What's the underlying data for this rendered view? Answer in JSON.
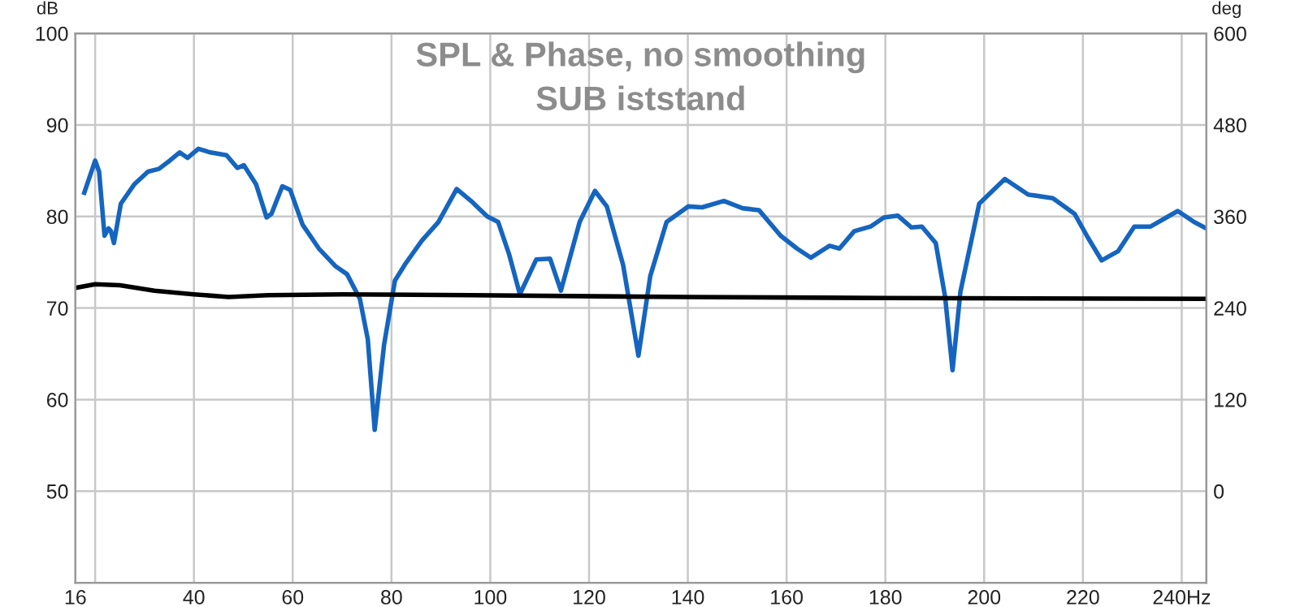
{
  "chart_data": {
    "type": "line",
    "title": "SPL & Phase, no smoothing",
    "subtitle": "SUB iststand",
    "ylabel": "dB",
    "y2label": "deg",
    "xlim": [
      16,
      245
    ],
    "xticks": [
      16,
      {
        "value": 20,
        "label": null
      },
      40,
      60,
      80,
      100,
      120,
      140,
      160,
      180,
      200,
      220,
      {
        "value": 240,
        "label": "240Hz"
      }
    ],
    "ylim": [
      40,
      100
    ],
    "yticks": [
      50,
      60,
      70,
      80,
      90,
      100
    ],
    "y2lim": [
      -120,
      600
    ],
    "y2ticks": [
      0,
      120,
      240,
      360,
      480,
      600
    ],
    "grid": true,
    "marker": "none",
    "line_style": "solid",
    "series": [
      {
        "color": "#1565c0",
        "x": [
          17.8,
          20.0,
          20.8,
          21.9,
          22.7,
          23.2,
          23.8,
          25.2,
          27.9,
          30.7,
          32.9,
          35.1,
          37.1,
          38.7,
          40.9,
          43.3,
          46.6,
          48.8,
          50.1,
          52.6,
          54.7,
          55.7,
          57.9,
          59.5,
          62.0,
          65.3,
          68.6,
          71.0,
          73.6,
          75.2,
          76.6,
          78.5,
          80.7,
          82.9,
          86.2,
          89.5,
          93.2,
          96.1,
          99.4,
          101.6,
          103.8,
          106.0,
          109.3,
          112.1,
          114.3,
          118.1,
          121.2,
          123.6,
          126.9,
          130.0,
          132.4,
          135.7,
          140.1,
          142.9,
          147.3,
          151.1,
          154.4,
          158.8,
          162.1,
          164.9,
          168.7,
          170.7,
          173.7,
          177.0,
          179.7,
          182.5,
          185.3,
          187.4,
          190.2,
          192.1,
          193.6,
          195.2,
          199.0,
          204.2,
          208.9,
          213.9,
          218.3,
          221.0,
          223.8,
          227.1,
          230.4,
          233.7,
          239.2,
          242.5,
          245.0
        ],
        "values": [
          82.6,
          86.1,
          84.9,
          77.9,
          78.7,
          78.4,
          77.1,
          81.4,
          83.5,
          84.9,
          85.2,
          86.1,
          87.0,
          86.4,
          87.4,
          87.0,
          86.7,
          85.3,
          85.6,
          83.5,
          79.9,
          80.3,
          83.3,
          82.9,
          79.1,
          76.5,
          74.6,
          73.7,
          71.0,
          66.6,
          56.7,
          66.0,
          73.0,
          74.9,
          77.4,
          79.4,
          83.0,
          81.7,
          80.0,
          79.4,
          75.9,
          71.5,
          75.3,
          75.4,
          71.9,
          79.4,
          82.8,
          81.1,
          74.7,
          64.8,
          73.5,
          79.4,
          81.1,
          81.0,
          81.7,
          80.9,
          80.7,
          77.9,
          76.5,
          75.5,
          76.8,
          76.5,
          78.4,
          78.9,
          79.9,
          80.1,
          78.8,
          78.9,
          77.1,
          71.2,
          63.2,
          71.8,
          81.4,
          84.1,
          82.4,
          82.0,
          80.3,
          77.7,
          75.2,
          76.2,
          78.9,
          78.9,
          80.6,
          79.4,
          78.7
        ]
      },
      {
        "color": "#000000",
        "x": [
          16,
          20,
          25,
          32,
          40,
          47,
          55,
          70,
          96,
          140,
          180,
          245
        ],
        "values": [
          72.2,
          72.6,
          72.5,
          71.9,
          71.5,
          71.2,
          71.4,
          71.5,
          71.4,
          71.2,
          71.1,
          71.0
        ]
      }
    ]
  }
}
